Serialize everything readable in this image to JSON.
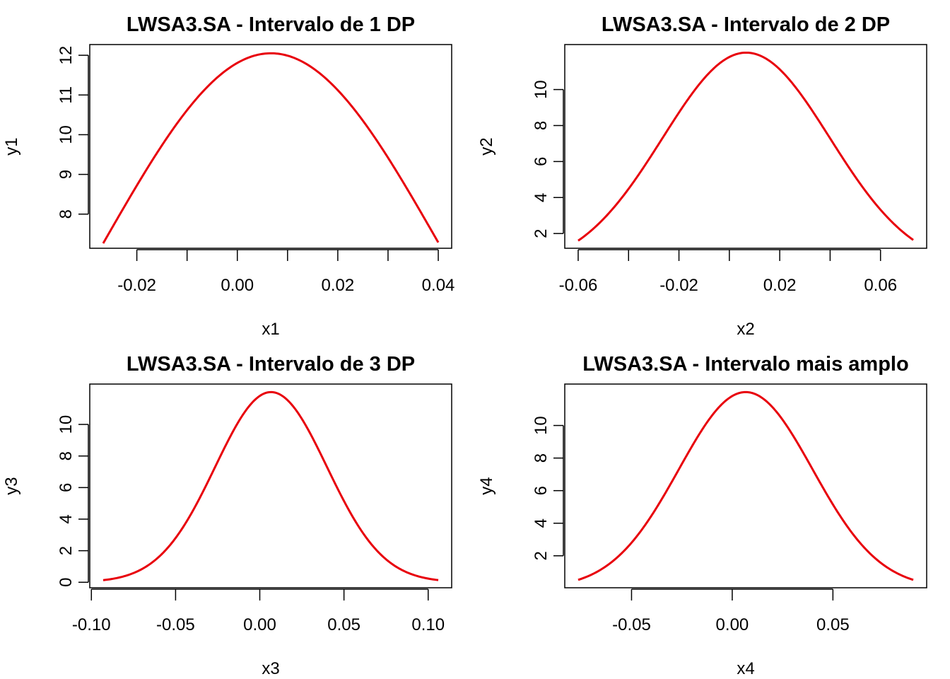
{
  "colors": {
    "curve": "#e8000b",
    "axis": "#000000",
    "background": "#ffffff"
  },
  "chart_data": [
    {
      "type": "line",
      "title": "LWSA3.SA - Intervalo de 1 DP",
      "xlabel": "x1",
      "ylabel": "y1",
      "xlim": [
        -0.0267,
        0.04
      ],
      "ylim": [
        7.33,
        12.08
      ],
      "xticks": [
        -0.02,
        -0.01,
        0.0,
        0.01,
        0.02,
        0.03,
        0.04
      ],
      "xtick_labels": [
        "-0.02",
        "",
        "0.00",
        "",
        "0.02",
        "",
        "0.04"
      ],
      "yticks": [
        8,
        9,
        10,
        11,
        12
      ],
      "ytick_labels": [
        "8",
        "9",
        "10",
        "11",
        "12"
      ],
      "series": [
        {
          "mean": 0.0067,
          "sd": 0.0332,
          "peak": 12.05,
          "x_from": -0.0267,
          "x_to": 0.04
        }
      ]
    },
    {
      "type": "line",
      "title": "LWSA3.SA - Intervalo de 2 DP",
      "xlabel": "x2",
      "ylabel": "y2",
      "xlim": [
        -0.06,
        0.073
      ],
      "ylim": [
        1.6,
        12.08
      ],
      "xticks": [
        -0.06,
        -0.04,
        -0.02,
        0.0,
        0.02,
        0.04,
        0.06
      ],
      "xtick_labels": [
        "-0.06",
        "",
        "-0.02",
        "",
        "0.02",
        "",
        "0.06"
      ],
      "yticks": [
        2,
        4,
        6,
        8,
        10
      ],
      "ytick_labels": [
        "2",
        "4",
        "6",
        "8",
        "10"
      ],
      "series": [
        {
          "mean": 0.0067,
          "sd": 0.0332,
          "peak": 12.05,
          "x_from": -0.06,
          "x_to": 0.073
        }
      ]
    },
    {
      "type": "line",
      "title": "LWSA3.SA - Intervalo de 3 DP",
      "xlabel": "x3",
      "ylabel": "y3",
      "xlim": [
        -0.093,
        0.106
      ],
      "ylim": [
        0.13,
        12.08
      ],
      "xticks": [
        -0.1,
        -0.05,
        0.0,
        0.05,
        0.1
      ],
      "xtick_labels": [
        "-0.10",
        "-0.05",
        "0.00",
        "0.05",
        "0.10"
      ],
      "yticks": [
        0,
        2,
        4,
        6,
        8,
        10
      ],
      "ytick_labels": [
        "0",
        "2",
        "4",
        "6",
        "8",
        "10"
      ],
      "series": [
        {
          "mean": 0.0067,
          "sd": 0.0332,
          "peak": 12.05,
          "x_from": -0.093,
          "x_to": 0.106
        }
      ]
    },
    {
      "type": "line",
      "title": "LWSA3.SA - Intervalo mais amplo",
      "xlabel": "x4",
      "ylabel": "y4",
      "xlim": [
        -0.0765,
        0.0899
      ],
      "ylim": [
        0.5,
        12.08
      ],
      "xticks": [
        -0.05,
        0.0,
        0.05
      ],
      "xtick_labels": [
        "-0.05",
        "0.00",
        "0.05"
      ],
      "yticks": [
        2,
        4,
        6,
        8,
        10
      ],
      "ytick_labels": [
        "2",
        "4",
        "6",
        "8",
        "10"
      ],
      "series": [
        {
          "mean": 0.0067,
          "sd": 0.0332,
          "peak": 12.05,
          "x_from": -0.0765,
          "x_to": 0.0899
        }
      ]
    }
  ]
}
